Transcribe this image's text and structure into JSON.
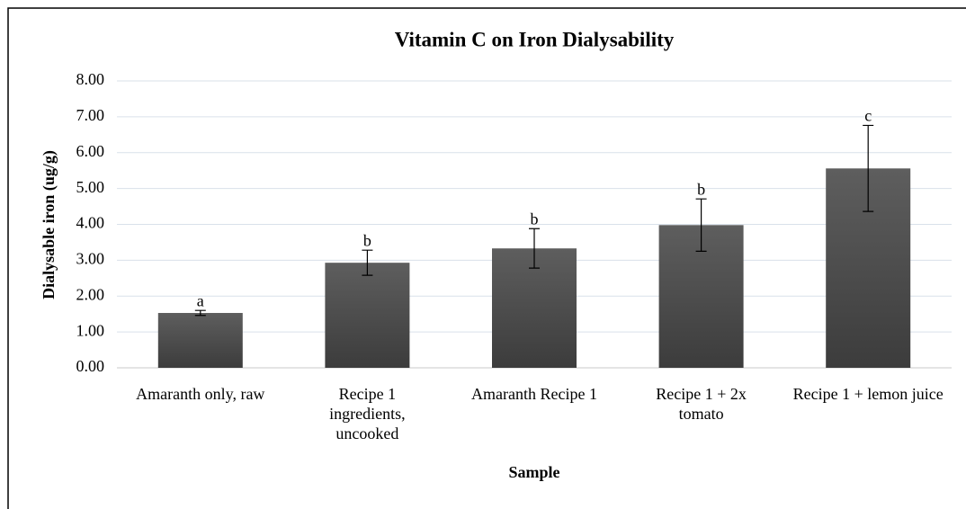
{
  "chart_data": {
    "type": "bar",
    "title": "Vitamin C on Iron Dialysability",
    "xlabel": "Sample",
    "ylabel": "Dialysable iron (ug/g)",
    "categories": [
      "Amaranth only, raw",
      "Recipe 1 ingredients, uncooked",
      "Amaranth Recipe 1",
      "Recipe 1 + 2x tomato",
      "Recipe 1 + lemon juice"
    ],
    "values": [
      1.53,
      2.93,
      3.33,
      3.98,
      5.56
    ],
    "errors": [
      0.07,
      0.35,
      0.55,
      0.73,
      1.2
    ],
    "annotations": [
      "a",
      "b",
      "b",
      "b",
      "c"
    ],
    "color": "#4d4d4d",
    "ylim": [
      0,
      8
    ],
    "yticks": [
      {
        "value": 0,
        "label": "0.00"
      },
      {
        "value": 1,
        "label": "1.00"
      },
      {
        "value": 2,
        "label": "2.00"
      },
      {
        "value": 3,
        "label": "3.00"
      },
      {
        "value": 4,
        "label": "4.00"
      },
      {
        "value": 5,
        "label": "5.00"
      },
      {
        "value": 6,
        "label": "6.00"
      },
      {
        "value": 7,
        "label": "7.00"
      },
      {
        "value": 8,
        "label": "8.00"
      }
    ],
    "grid": true
  }
}
